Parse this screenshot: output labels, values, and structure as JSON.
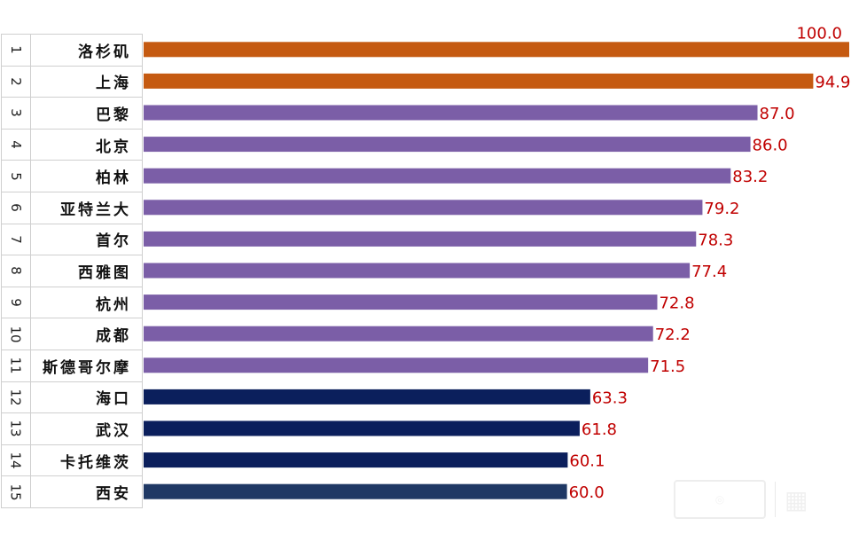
{
  "chart_data": {
    "type": "bar",
    "orientation": "horizontal",
    "title": "",
    "xlabel": "",
    "ylabel": "",
    "xlim": [
      0,
      100
    ],
    "ranks": [
      "1",
      "2",
      "3",
      "4",
      "5",
      "6",
      "7",
      "8",
      "9",
      "10",
      "11",
      "12",
      "13",
      "14",
      "15"
    ],
    "categories": [
      "洛杉矶",
      "上海",
      "巴黎",
      "北京",
      "柏林",
      "亚特兰大",
      "首尔",
      "西雅图",
      "杭州",
      "成都",
      "斯德哥尔摩",
      "海口",
      "武汉",
      "卡托维茨",
      "西安"
    ],
    "values": [
      100.0,
      94.9,
      87.0,
      86.0,
      83.2,
      79.2,
      78.3,
      77.4,
      72.8,
      72.2,
      71.5,
      63.3,
      61.8,
      60.1,
      60.0
    ],
    "value_labels": [
      "100.0",
      "94.9",
      "87.0",
      "86.0",
      "83.2",
      "79.2",
      "78.3",
      "77.4",
      "72.8",
      "72.2",
      "71.5",
      "63.3",
      "61.8",
      "60.1",
      "60.0"
    ],
    "bar_colors": [
      "#c55a11",
      "#c55a11",
      "#7b5ea7",
      "#7b5ea7",
      "#7b5ea7",
      "#7b5ea7",
      "#7b5ea7",
      "#7b5ea7",
      "#7b5ea7",
      "#7b5ea7",
      "#7b5ea7",
      "#0b1f5c",
      "#0b1f5c",
      "#0b1f5c",
      "#1f3864"
    ],
    "label_color": "#c00000"
  }
}
